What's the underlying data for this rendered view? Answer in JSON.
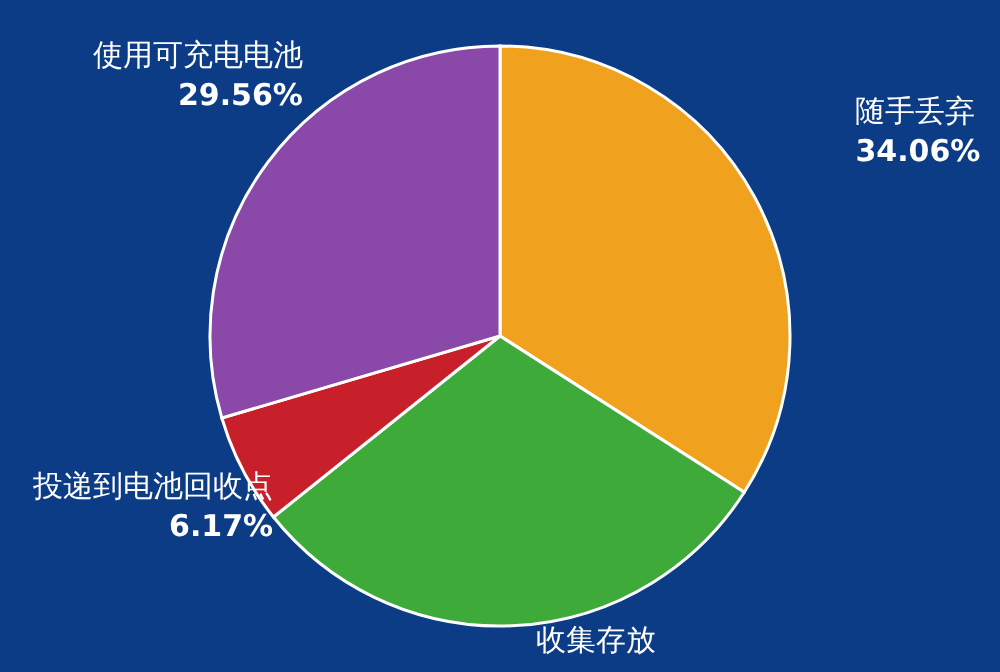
{
  "chart_data": {
    "type": "pie",
    "categories": [
      "随手丢弃",
      "收集存放",
      "投递到电池回收点",
      "使用可充电电池"
    ],
    "values": [
      34.06,
      30.21,
      6.17,
      29.56
    ],
    "value_labels": [
      "34.06%",
      null,
      "6.17%",
      "29.56%"
    ],
    "colors": [
      "#f0a21e",
      "#3eaa3a",
      "#c8202a",
      "#8a48a8"
    ]
  }
}
